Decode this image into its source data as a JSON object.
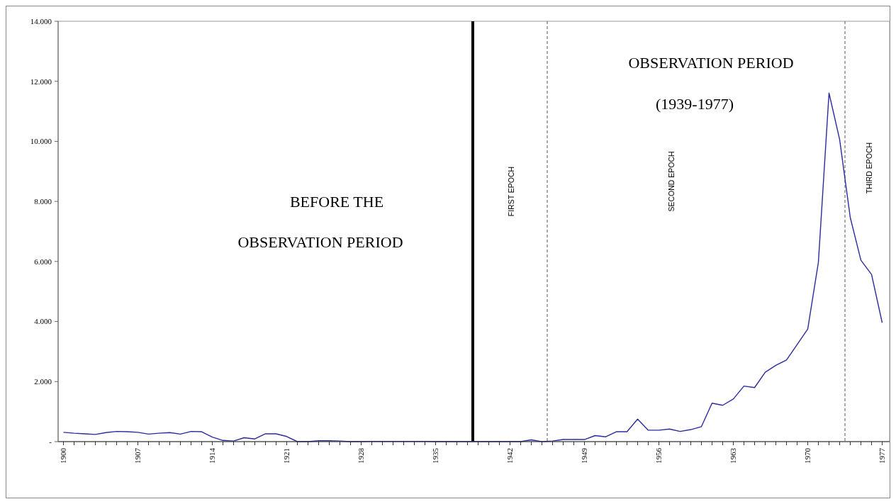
{
  "chart_data": {
    "type": "line",
    "x": [
      1900,
      1901,
      1902,
      1903,
      1904,
      1905,
      1906,
      1907,
      1908,
      1909,
      1910,
      1911,
      1912,
      1913,
      1914,
      1915,
      1916,
      1917,
      1918,
      1919,
      1920,
      1921,
      1922,
      1923,
      1924,
      1925,
      1926,
      1927,
      1928,
      1929,
      1930,
      1931,
      1932,
      1933,
      1934,
      1935,
      1936,
      1937,
      1938,
      1939,
      1940,
      1941,
      1942,
      1943,
      1944,
      1945,
      1946,
      1947,
      1948,
      1949,
      1950,
      1951,
      1952,
      1953,
      1954,
      1955,
      1956,
      1957,
      1958,
      1959,
      1960,
      1961,
      1962,
      1963,
      1964,
      1965,
      1966,
      1967,
      1968,
      1969,
      1970,
      1971,
      1972,
      1973,
      1974,
      1975,
      1976,
      1977
    ],
    "series": [
      {
        "color": "#2b2b9e",
        "values": [
          310,
          280,
          260,
          240,
          300,
          340,
          330,
          310,
          250,
          280,
          300,
          250,
          340,
          330,
          150,
          40,
          20,
          130,
          90,
          260,
          260,
          170,
          0,
          0,
          30,
          30,
          20,
          0,
          0,
          10,
          10,
          10,
          10,
          10,
          10,
          0,
          0,
          0,
          0,
          0,
          0,
          0,
          0,
          0,
          60,
          0,
          20,
          70,
          70,
          70,
          200,
          160,
          330,
          330,
          750,
          380,
          380,
          420,
          340,
          400,
          500,
          1280,
          1210,
          1420,
          1850,
          1800,
          2310,
          2540,
          2720,
          3230,
          3750,
          5970,
          11610,
          10060,
          7460,
          6040,
          5570,
          3960
        ]
      }
    ],
    "xlim": [
      1899.5,
      1977.7
    ],
    "xticks": [
      1900,
      {
        "value": 1901,
        "label": null
      },
      {
        "value": 1902,
        "label": null
      },
      {
        "value": 1903,
        "label": null
      },
      {
        "value": 1904,
        "label": null
      },
      {
        "value": 1905,
        "label": null
      },
      {
        "value": 1906,
        "label": null
      },
      1907,
      {
        "value": 1908,
        "label": null
      },
      {
        "value": 1909,
        "label": null
      },
      {
        "value": 1910,
        "label": null
      },
      {
        "value": 1911,
        "label": null
      },
      {
        "value": 1912,
        "label": null
      },
      {
        "value": 1913,
        "label": null
      },
      1914,
      {
        "value": 1915,
        "label": null
      },
      {
        "value": 1916,
        "label": null
      },
      {
        "value": 1917,
        "label": null
      },
      {
        "value": 1918,
        "label": null
      },
      {
        "value": 1919,
        "label": null
      },
      {
        "value": 1920,
        "label": null
      },
      1921,
      {
        "value": 1922,
        "label": null
      },
      {
        "value": 1923,
        "label": null
      },
      {
        "value": 1924,
        "label": null
      },
      {
        "value": 1925,
        "label": null
      },
      {
        "value": 1926,
        "label": null
      },
      {
        "value": 1927,
        "label": null
      },
      1928,
      {
        "value": 1929,
        "label": null
      },
      {
        "value": 1930,
        "label": null
      },
      {
        "value": 1931,
        "label": null
      },
      {
        "value": 1932,
        "label": null
      },
      {
        "value": 1933,
        "label": null
      },
      {
        "value": 1934,
        "label": null
      },
      1935,
      {
        "value": 1936,
        "label": null
      },
      {
        "value": 1937,
        "label": null
      },
      {
        "value": 1938,
        "label": null
      },
      {
        "value": 1939,
        "label": null
      },
      {
        "value": 1940,
        "label": null
      },
      {
        "value": 1941,
        "label": null
      },
      1942,
      {
        "value": 1943,
        "label": null
      },
      {
        "value": 1944,
        "label": null
      },
      {
        "value": 1945,
        "label": null
      },
      {
        "value": 1946,
        "label": null
      },
      {
        "value": 1947,
        "label": null
      },
      {
        "value": 1948,
        "label": null
      },
      1949,
      {
        "value": 1950,
        "label": null
      },
      {
        "value": 1951,
        "label": null
      },
      {
        "value": 1952,
        "label": null
      },
      {
        "value": 1953,
        "label": null
      },
      {
        "value": 1954,
        "label": null
      },
      {
        "value": 1955,
        "label": null
      },
      1956,
      {
        "value": 1957,
        "label": null
      },
      {
        "value": 1958,
        "label": null
      },
      {
        "value": 1959,
        "label": null
      },
      {
        "value": 1960,
        "label": null
      },
      {
        "value": 1961,
        "label": null
      },
      {
        "value": 1962,
        "label": null
      },
      1963,
      {
        "value": 1964,
        "label": null
      },
      {
        "value": 1965,
        "label": null
      },
      {
        "value": 1966,
        "label": null
      },
      {
        "value": 1967,
        "label": null
      },
      {
        "value": 1968,
        "label": null
      },
      {
        "value": 1969,
        "label": null
      },
      1970,
      {
        "value": 1971,
        "label": null
      },
      {
        "value": 1972,
        "label": null
      },
      {
        "value": 1973,
        "label": null
      },
      {
        "value": 1974,
        "label": null
      },
      {
        "value": 1975,
        "label": null
      },
      {
        "value": 1976,
        "label": null
      },
      1977
    ],
    "ylim": [
      0,
      14000
    ],
    "yticks": [
      {
        "value": 0,
        "label": "-"
      },
      {
        "value": 2000,
        "label": "2.000"
      },
      {
        "value": 4000,
        "label": "4.000"
      },
      {
        "value": 6000,
        "label": "6.000"
      },
      {
        "value": 8000,
        "label": "8.000"
      },
      {
        "value": 10000,
        "label": "10.000"
      },
      {
        "value": 12000,
        "label": "12.000"
      },
      {
        "value": 14000,
        "label": "14.000"
      }
    ],
    "ref_lines": [
      {
        "axis": "x",
        "value": 1938.5,
        "color": "#000000",
        "line_style": "solid"
      },
      {
        "axis": "x",
        "value": 1945.5,
        "color": "#555555",
        "line_style": "dashed"
      },
      {
        "axis": "x",
        "value": 1973.5,
        "color": "#555555",
        "line_style": "dashed"
      }
    ],
    "annotations": [
      "BEFORE THE",
      "OBSERVATION PERIOD",
      "OBSERVATION PERIOD",
      "(1939-1977)",
      "FIRST EPOCH",
      "SECOND EPOCH",
      "THIRD EPOCH"
    ],
    "grid": false,
    "marker": "none",
    "line_style": "solid"
  }
}
